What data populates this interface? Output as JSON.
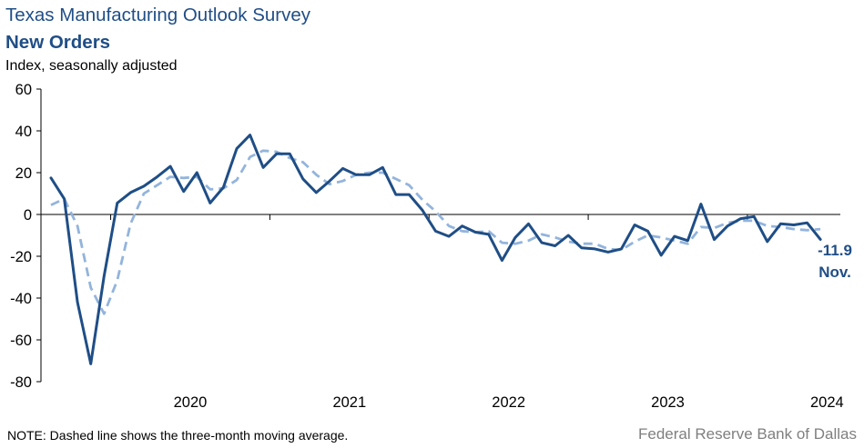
{
  "header": {
    "title": "Texas Manufacturing Outlook Survey",
    "subtitle": "New Orders",
    "units": "Index, seasonally adjusted"
  },
  "footer": {
    "note": "NOTE: Dashed line shows the three-month  moving average.",
    "source": "Federal Reserve Bank of Dallas"
  },
  "chart_data": {
    "type": "line",
    "title": "New Orders",
    "ylabel": "Index, seasonally adjusted",
    "ylim": [
      -80,
      60
    ],
    "yticks": [
      60,
      40,
      20,
      0,
      -20,
      -40,
      -60,
      -80
    ],
    "xticks": [
      "2020",
      "2021",
      "2022",
      "2023",
      "2024"
    ],
    "start": "2019-08",
    "colors": {
      "series": "#1f4e86",
      "average": "#93b4dc"
    },
    "series": [
      {
        "style": "solid",
        "values": [
          17.5,
          7.5,
          -42,
          -71.5,
          -29.5,
          5.5,
          10.5,
          13.5,
          18,
          23,
          11,
          20,
          5.5,
          13,
          31.5,
          38,
          22.5,
          29,
          29,
          17,
          10.5,
          16,
          22,
          19,
          19,
          22.5,
          9.5,
          9.5,
          2,
          -8,
          -10.5,
          -5.5,
          -8.5,
          -9.5,
          -22,
          -11,
          -4.5,
          -13.5,
          -15,
          -10,
          -16,
          -16.5,
          -18,
          -16.5,
          -5,
          -8,
          -19.5,
          -10.5,
          -12.5,
          5,
          -12,
          -5.5,
          -2,
          -1,
          -13,
          -4.5,
          -5,
          -4,
          -11.9
        ]
      },
      {
        "style": "dashed",
        "values": [
          4.5,
          7.5,
          -5.5,
          -35,
          -47.5,
          -31.5,
          -4.5,
          10,
          14,
          18,
          17.5,
          18,
          12,
          12.5,
          16.5,
          27.5,
          30.5,
          30,
          27,
          25,
          19,
          14.5,
          16,
          19,
          20,
          20,
          17,
          14,
          7,
          1.5,
          -5.5,
          -8,
          -8.5,
          -8,
          -13.5,
          -14,
          -12.5,
          -9.5,
          -11,
          -13,
          -14,
          -14,
          -16.5,
          -17,
          -13,
          -10,
          -11,
          -12.5,
          -14,
          -6,
          -6.5,
          -4,
          -3,
          -3,
          -5.5,
          -6,
          -7,
          -7.5,
          -7
        ]
      }
    ],
    "annotation": {
      "value": "-11.9",
      "month": "Nov."
    }
  }
}
